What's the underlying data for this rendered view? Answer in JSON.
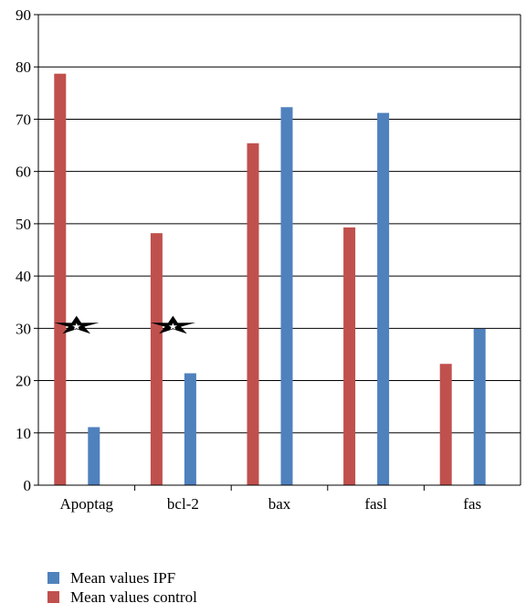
{
  "chart_data": {
    "type": "bar",
    "categories": [
      "Apoptag",
      "bcl-2",
      "bax",
      "fasl",
      "fas"
    ],
    "series": [
      {
        "name": "Mean values control",
        "color": "#c0504d",
        "values": [
          78.7,
          48.2,
          65.4,
          49.3,
          23.2
        ]
      },
      {
        "name": "Mean values IPF",
        "color": "#4f81bd",
        "values": [
          11.1,
          21.4,
          72.3,
          71.2,
          29.9
        ]
      }
    ],
    "ylim": [
      0,
      90
    ],
    "yticks": [
      "0",
      "10",
      "20",
      "30",
      "40",
      "50",
      "60",
      "70",
      "80",
      "90"
    ],
    "grid": true,
    "legend_position": "bottom-left",
    "annotations": [
      {
        "category": "Apoptag",
        "symbol": "star",
        "y": 30.5
      },
      {
        "category": "bcl-2",
        "symbol": "star",
        "y": 30.5
      }
    ]
  },
  "legend": {
    "items": [
      {
        "label": "Mean values IPF",
        "color": "#4f81bd"
      },
      {
        "label": "Mean values control",
        "color": "#c0504d"
      }
    ]
  }
}
